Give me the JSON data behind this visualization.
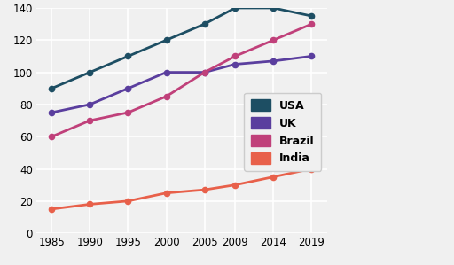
{
  "years": [
    1985,
    1990,
    1995,
    2000,
    2005,
    2009,
    2014,
    2019
  ],
  "USA": [
    90,
    100,
    110,
    120,
    130,
    140,
    140,
    135
  ],
  "UK": [
    75,
    80,
    90,
    100,
    100,
    105,
    107,
    110
  ],
  "Brazil": [
    60,
    70,
    75,
    85,
    100,
    110,
    120,
    130
  ],
  "India": [
    15,
    18,
    20,
    25,
    27,
    30,
    35,
    40
  ],
  "colors": {
    "USA": "#1d4e63",
    "UK": "#5a3e9e",
    "Brazil": "#c0407a",
    "India": "#e8604a"
  },
  "ylim": [
    0,
    140
  ],
  "yticks": [
    0,
    20,
    40,
    60,
    80,
    100,
    120,
    140
  ],
  "background_color": "#f0f0f0",
  "legend_labels": [
    "USA",
    "UK",
    "Brazil",
    "India"
  ]
}
